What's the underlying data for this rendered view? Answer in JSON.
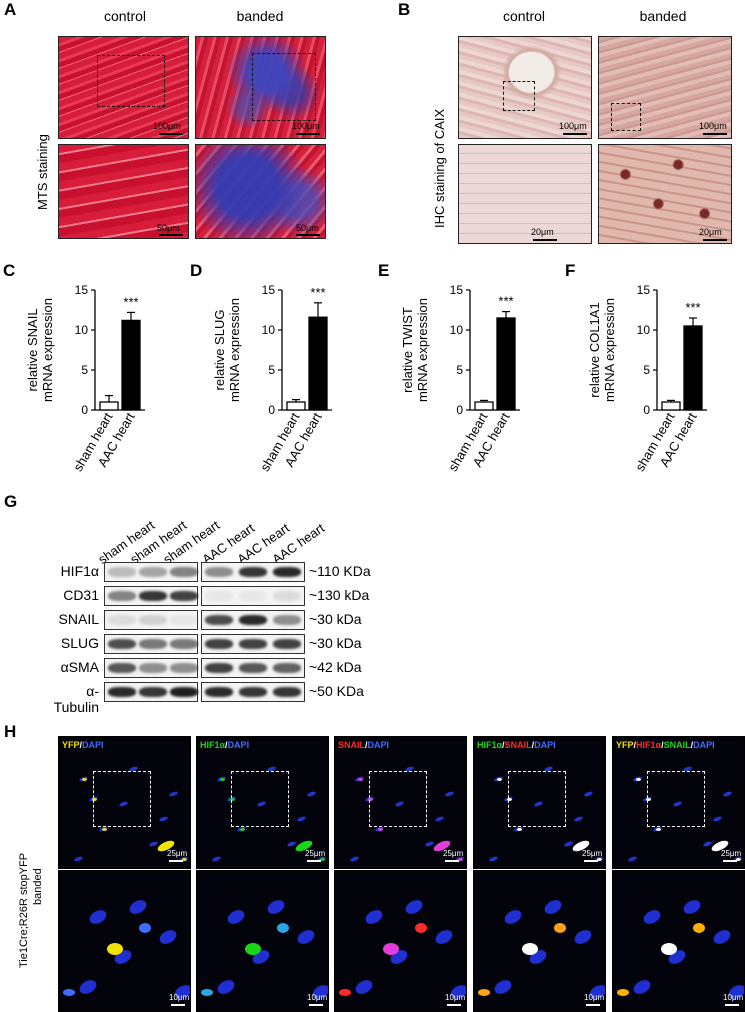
{
  "panels": {
    "A": {
      "letter": "A",
      "columns": [
        "control",
        "banded"
      ],
      "row_label": "MTS staining",
      "scale_top": [
        "100μm",
        "100μm"
      ],
      "scale_bottom": [
        "50μm",
        "50μm"
      ]
    },
    "B": {
      "letter": "B",
      "columns": [
        "control",
        "banded"
      ],
      "row_label": "IHC staining of CAIX",
      "scale_top": [
        "100μm",
        "100μm"
      ],
      "scale_bottom": [
        "20μm",
        "20μm"
      ]
    },
    "G": {
      "letter": "G",
      "lanes": [
        "sham heart",
        "sham heart",
        "sham heart",
        "AAC heart",
        "AAC heart",
        "AAC heart"
      ],
      "rows": [
        {
          "label": "HIF1α",
          "size": "~110 KDa"
        },
        {
          "label": "CD31",
          "size": "~130 kDa"
        },
        {
          "label": "SNAIL",
          "size": "~30 kDa"
        },
        {
          "label": "SLUG",
          "size": "~30 kDa"
        },
        {
          "label": "αSMA",
          "size": "~42 kDa"
        },
        {
          "label": "α-Tubulin",
          "size": "~50 KDa"
        }
      ]
    },
    "H": {
      "letter": "H",
      "row_label_1": "Tie1Cre;R26R stopYFP",
      "row_label_2": "banded",
      "channels": [
        {
          "parts": [
            {
              "text": "YFP",
              "color": "#f2e200"
            },
            {
              "text": "/",
              "color": "#ffffff"
            },
            {
              "text": "DAPI",
              "color": "#3f6dff"
            }
          ]
        },
        {
          "parts": [
            {
              "text": "HIF1α",
              "color": "#19d619"
            },
            {
              "text": "/",
              "color": "#ffffff"
            },
            {
              "text": "DAPI",
              "color": "#3f6dff"
            }
          ]
        },
        {
          "parts": [
            {
              "text": "SNAIL",
              "color": "#ff2a2a"
            },
            {
              "text": "/",
              "color": "#ffffff"
            },
            {
              "text": "DAPI",
              "color": "#3f6dff"
            }
          ]
        },
        {
          "parts": [
            {
              "text": "HIF1α",
              "color": "#19d619"
            },
            {
              "text": "/",
              "color": "#ffffff"
            },
            {
              "text": "SNAIL",
              "color": "#ff2a2a"
            },
            {
              "text": "/",
              "color": "#ffffff"
            },
            {
              "text": "DAPI",
              "color": "#3f6dff"
            }
          ]
        },
        {
          "parts": [
            {
              "text": "YFP",
              "color": "#f2e200"
            },
            {
              "text": "/",
              "color": "#ffffff"
            },
            {
              "text": "HIF1α",
              "color": "#ff2a2a"
            },
            {
              "text": "/",
              "color": "#ffffff"
            },
            {
              "text": "SNAIL",
              "color": "#19d619"
            },
            {
              "text": "/",
              "color": "#ffffff"
            },
            {
              "text": "DAPI",
              "color": "#3f6dff"
            }
          ]
        }
      ],
      "scale_top": "25μm",
      "scale_bottom": "10μm"
    }
  },
  "chart_data": [
    {
      "type": "bar",
      "letter": "C",
      "categories": [
        "sham heart",
        "AAC heart"
      ],
      "values": [
        1.0,
        11.2
      ],
      "errors": [
        0.8,
        1.0
      ],
      "ylabel_lines": [
        "relative SNAIL",
        "mRNA expression"
      ],
      "ylim": [
        0,
        15
      ],
      "yticks": [
        0,
        5,
        10,
        15
      ],
      "significance": "***",
      "bar_fill": [
        "#ffffff",
        "#000000"
      ]
    },
    {
      "type": "bar",
      "letter": "D",
      "categories": [
        "sham heart",
        "AAC heart"
      ],
      "values": [
        1.0,
        11.6
      ],
      "errors": [
        0.3,
        1.8
      ],
      "ylabel_lines": [
        "relative SLUG",
        "mRNA expression"
      ],
      "ylim": [
        0,
        15
      ],
      "yticks": [
        0,
        5,
        10,
        15
      ],
      "significance": "***",
      "bar_fill": [
        "#ffffff",
        "#000000"
      ]
    },
    {
      "type": "bar",
      "letter": "E",
      "categories": [
        "sham heart",
        "AAC heart"
      ],
      "values": [
        1.0,
        11.5
      ],
      "errors": [
        0.2,
        0.8
      ],
      "ylabel_lines": [
        "relative TWIST",
        "mRNA expression"
      ],
      "ylim": [
        0,
        15
      ],
      "yticks": [
        0,
        5,
        10,
        15
      ],
      "significance": "***",
      "bar_fill": [
        "#ffffff",
        "#000000"
      ]
    },
    {
      "type": "bar",
      "letter": "F",
      "categories": [
        "sham heart",
        "AAC heart"
      ],
      "values": [
        1.0,
        10.5
      ],
      "errors": [
        0.2,
        1.0
      ],
      "ylabel_lines": [
        "relative COL1A1",
        "mRNA expression"
      ],
      "ylim": [
        0,
        15
      ],
      "yticks": [
        0,
        5,
        10,
        15
      ],
      "significance": "***",
      "bar_fill": [
        "#ffffff",
        "#000000"
      ]
    }
  ]
}
